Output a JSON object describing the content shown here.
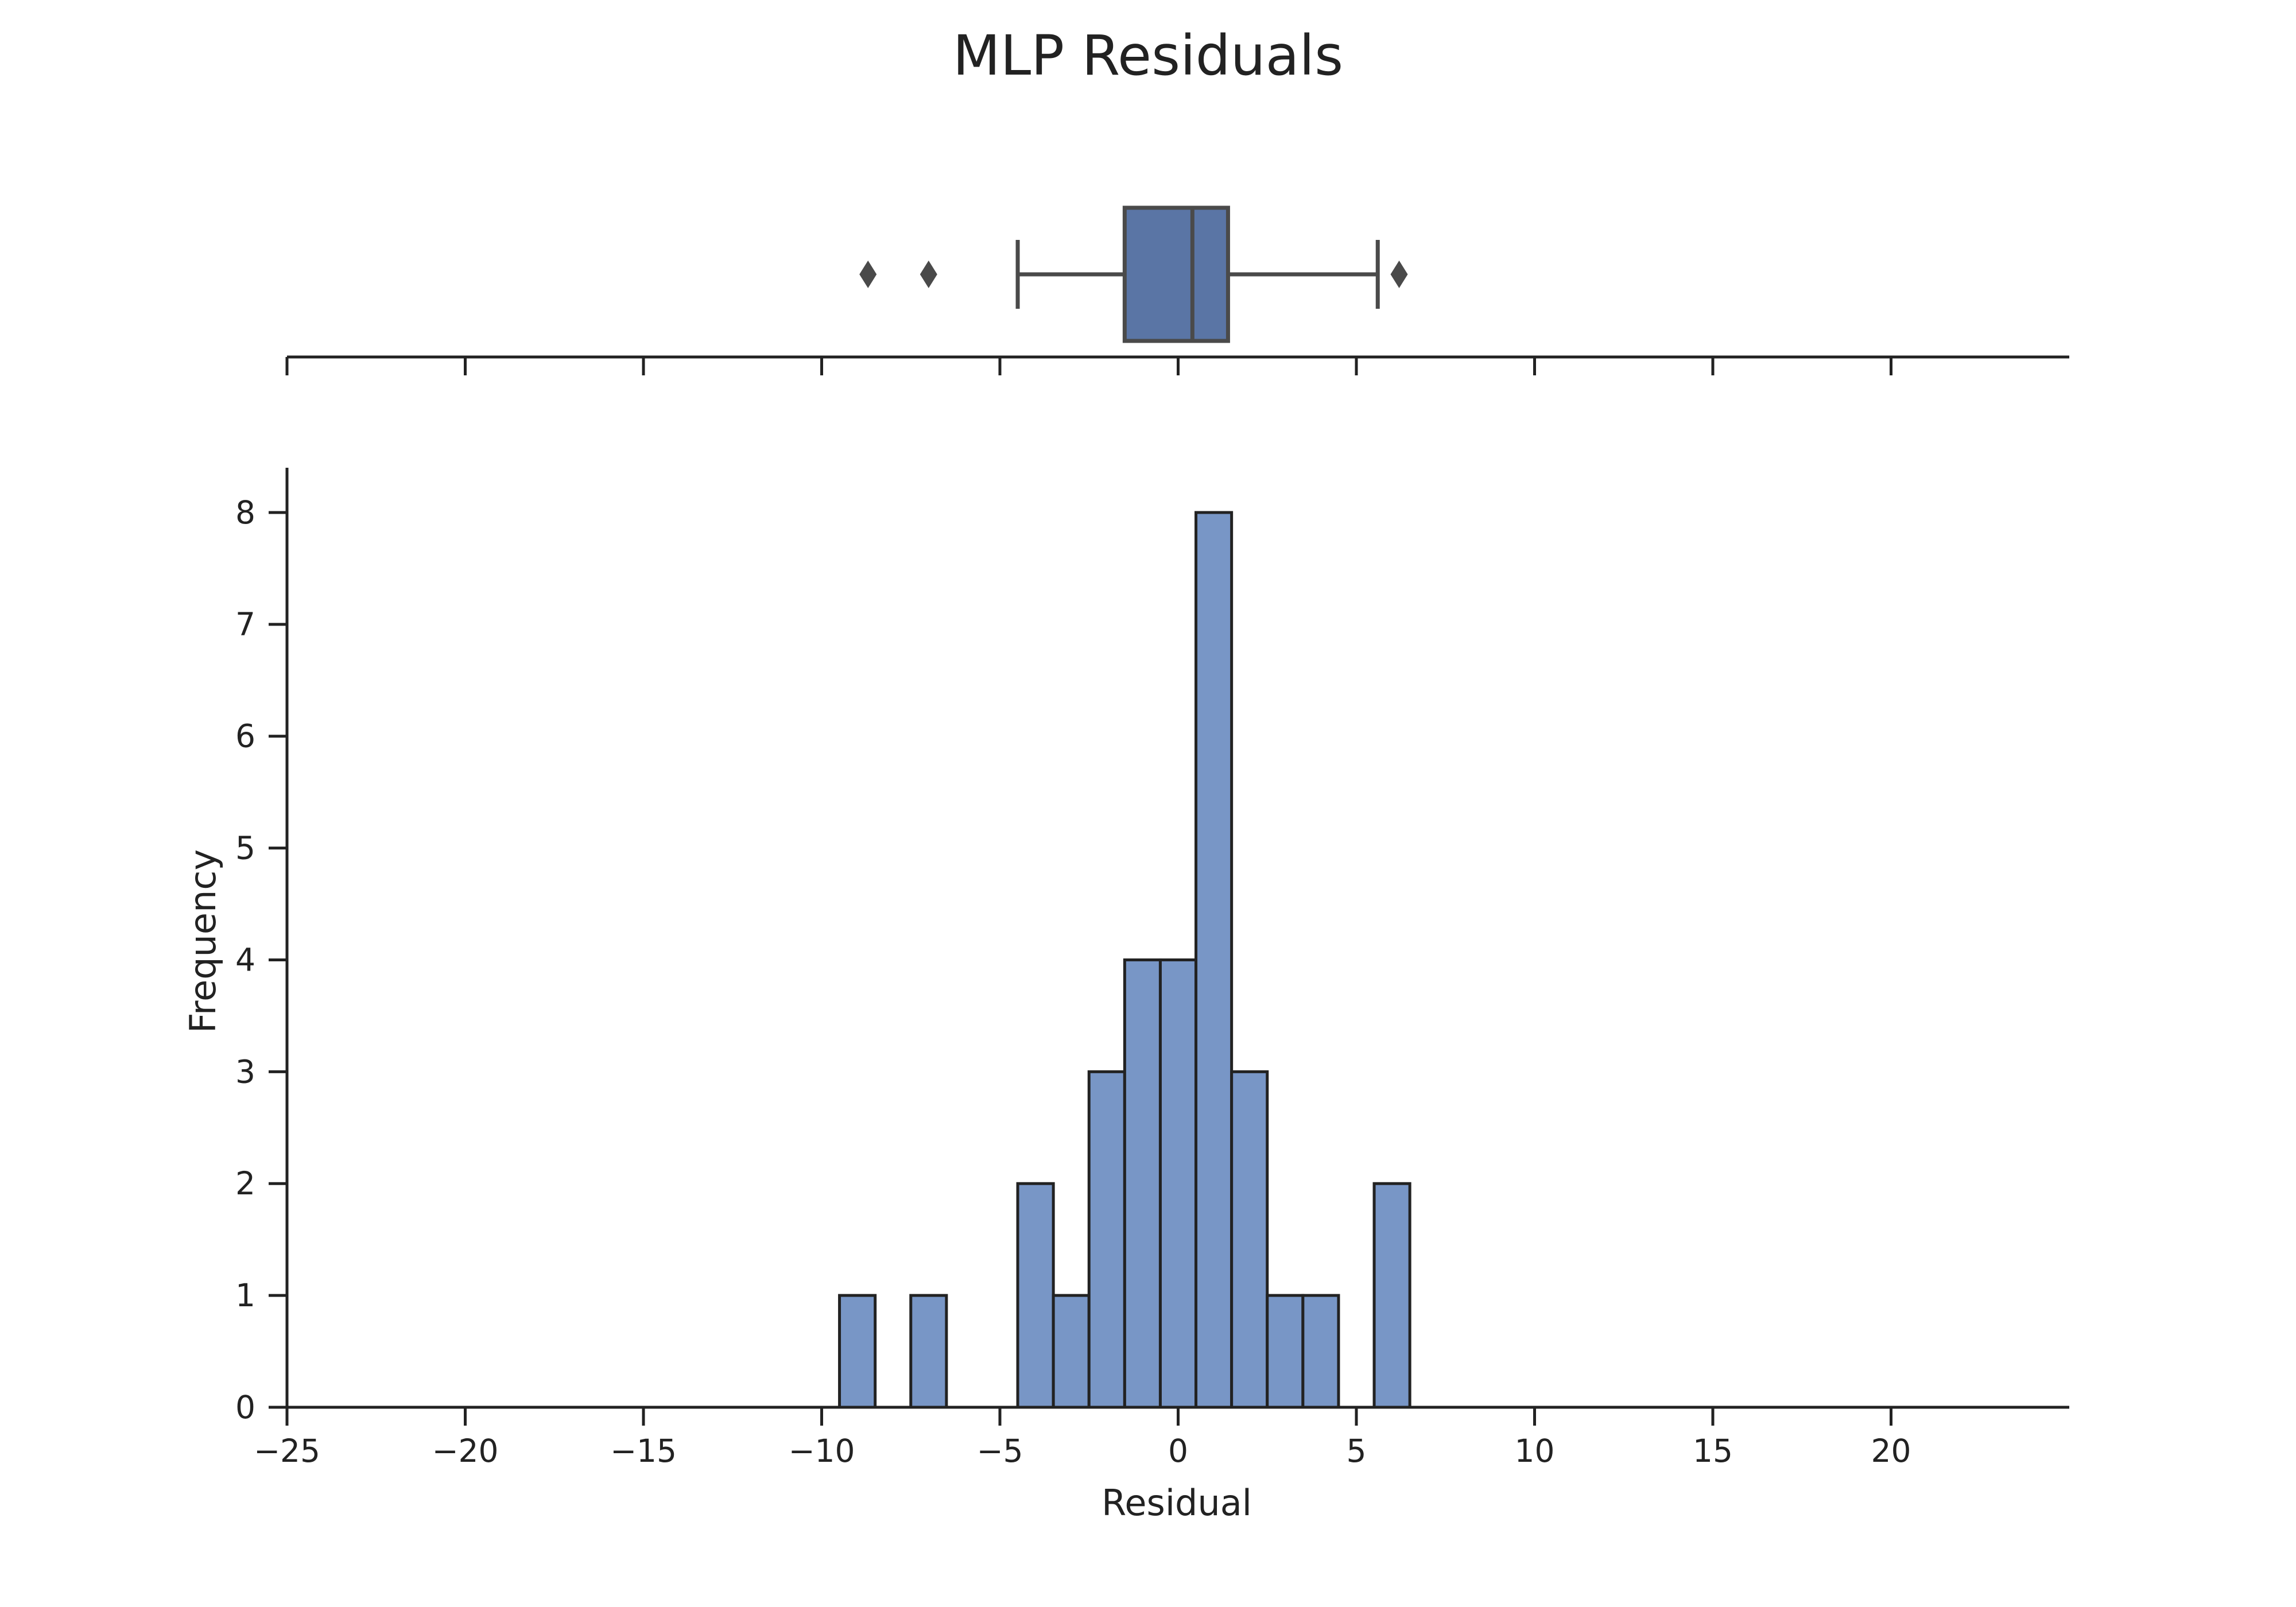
{
  "chart_data": [
    {
      "type": "box",
      "title": "MLP Residuals",
      "q1": -1.5,
      "median": 0.4,
      "q3": 1.4,
      "whisker_low": -4.5,
      "whisker_high": 5.6,
      "outliers": [
        -8.7,
        -7.0,
        6.2
      ],
      "xlim": [
        -25,
        25
      ],
      "xticks": [
        -25,
        -20,
        -15,
        -10,
        -5,
        0,
        5,
        10,
        15,
        20
      ],
      "color": "#5a75a5",
      "line_color": "#4a4a4a"
    },
    {
      "type": "histogram",
      "xlabel": "Residual",
      "ylabel": "Frequency",
      "xlim": [
        -25,
        25
      ],
      "ylim": [
        0,
        8.4
      ],
      "bin_width": 1,
      "bins": [
        {
          "start": -9.5,
          "end": -8.5,
          "count": 1
        },
        {
          "start": -7.5,
          "end": -6.5,
          "count": 1
        },
        {
          "start": -4.5,
          "end": -3.5,
          "count": 2
        },
        {
          "start": -3.5,
          "end": -2.5,
          "count": 1
        },
        {
          "start": -2.5,
          "end": -1.5,
          "count": 3
        },
        {
          "start": -1.5,
          "end": -0.5,
          "count": 4
        },
        {
          "start": -0.5,
          "end": 0.5,
          "count": 4
        },
        {
          "start": 0.5,
          "end": 1.5,
          "count": 8
        },
        {
          "start": 1.5,
          "end": 2.5,
          "count": 3
        },
        {
          "start": 2.5,
          "end": 3.5,
          "count": 1
        },
        {
          "start": 3.5,
          "end": 4.5,
          "count": 1
        },
        {
          "start": 5.5,
          "end": 6.5,
          "count": 2
        }
      ],
      "xticks": [
        "−25",
        "−20",
        "−15",
        "−10",
        "−5",
        "0",
        "5",
        "10",
        "15",
        "20"
      ],
      "xtick_values": [
        -25,
        -20,
        -15,
        -10,
        -5,
        0,
        5,
        10,
        15,
        20
      ],
      "yticks": [
        0,
        1,
        2,
        3,
        4,
        5,
        6,
        7,
        8
      ],
      "color": "#7896c6",
      "edge_color": "#222222"
    }
  ]
}
